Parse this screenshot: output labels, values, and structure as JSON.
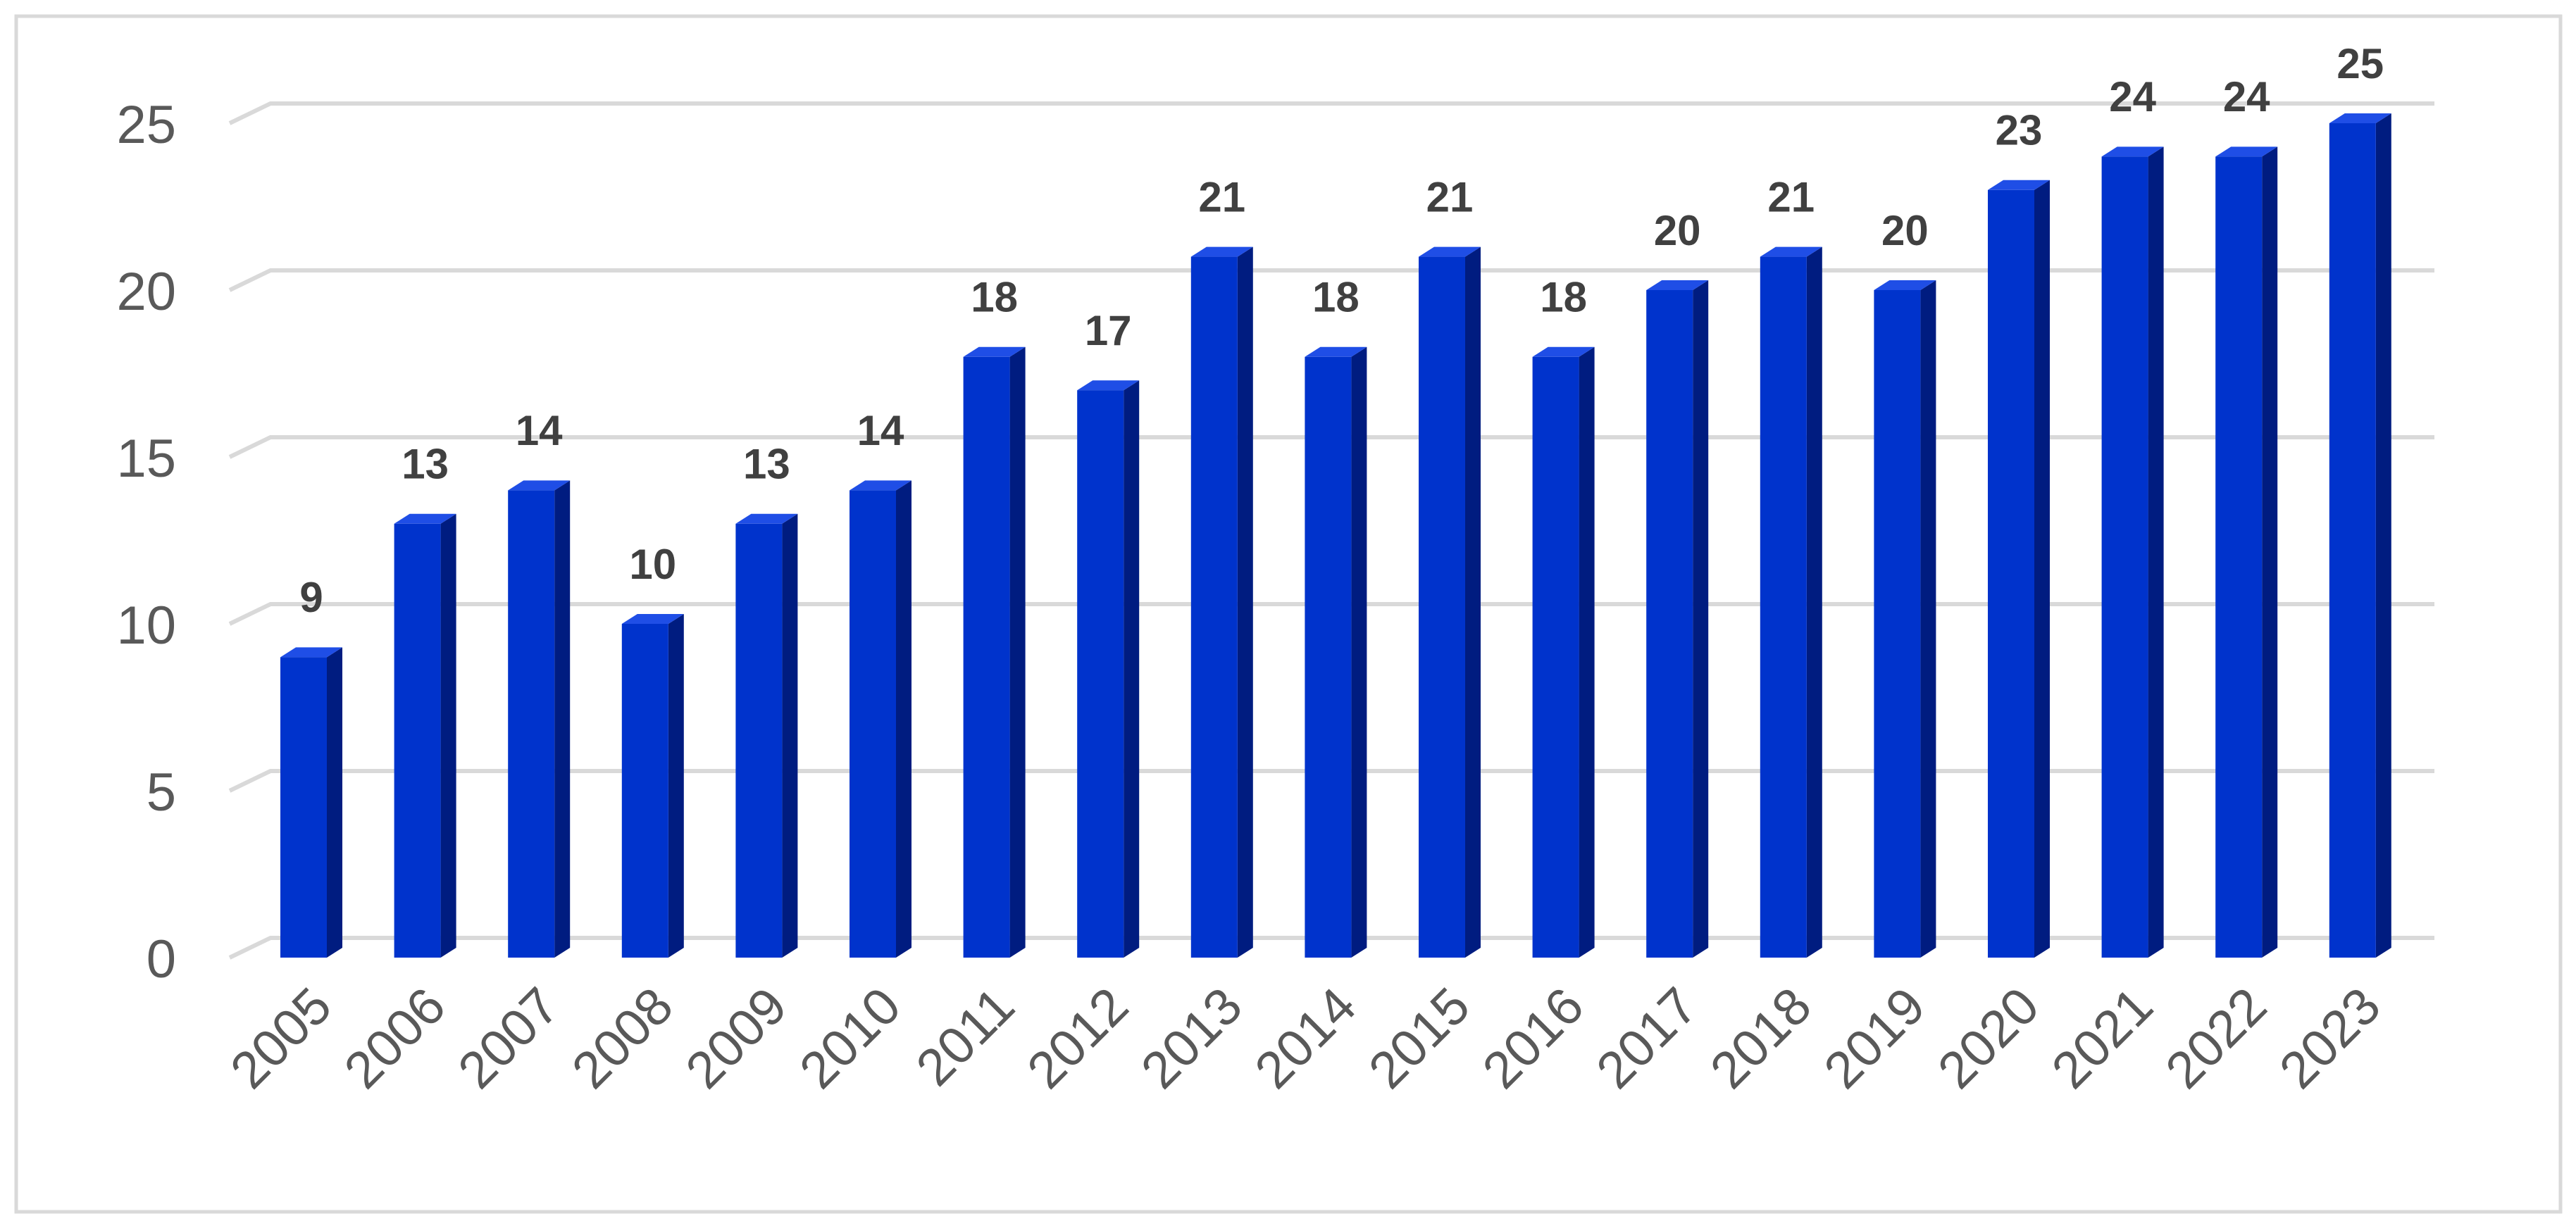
{
  "chart_data": {
    "type": "bar",
    "categories": [
      "2005",
      "2006",
      "2007",
      "2008",
      "2009",
      "2010",
      "2011",
      "2012",
      "2013",
      "2014",
      "2015",
      "2016",
      "2017",
      "2018",
      "2019",
      "2020",
      "2021",
      "2022",
      "2023"
    ],
    "values": [
      9,
      13,
      14,
      10,
      13,
      14,
      18,
      17,
      21,
      18,
      21,
      18,
      20,
      21,
      20,
      23,
      24,
      24,
      25
    ],
    "color": "#0033cc",
    "ylim": [
      0,
      25
    ],
    "yticks": [
      0,
      5,
      10,
      15,
      20,
      25
    ],
    "grid": true
  }
}
